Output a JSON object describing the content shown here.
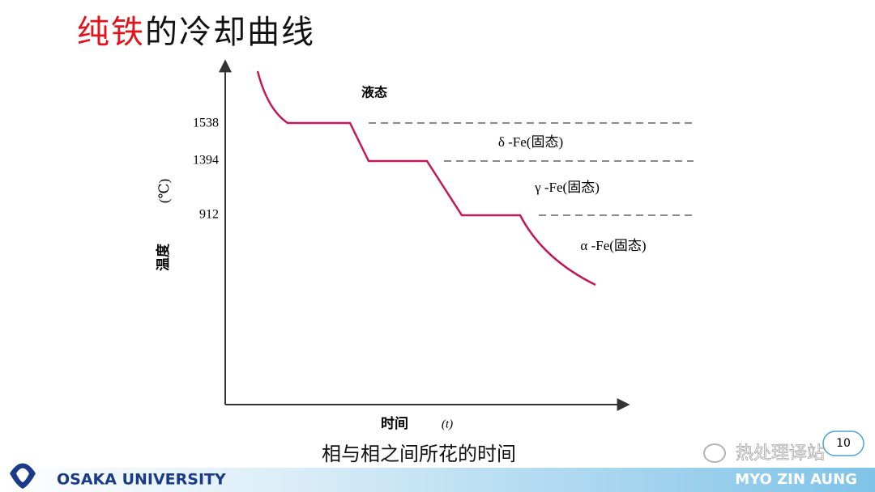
{
  "header": {
    "title_red": "纯铁",
    "title_rest": "的冷却曲线"
  },
  "diagram": {
    "y_ticks": [
      1538,
      1394,
      912
    ],
    "y_label": "温度",
    "y_unit": "(℃)",
    "phases": [
      "液态",
      "δ -Fe(固态)",
      "γ -Fe(固态)",
      "α -Fe(固态)"
    ],
    "x_label": "时间",
    "x_unit": "(t)"
  },
  "caption": "相与相之间所花的时间",
  "watermark": "热处理译站",
  "page_number": "10",
  "footer": {
    "university": "OSAKA UNIVERSITY",
    "author": "MYO ZIN AUNG"
  }
}
